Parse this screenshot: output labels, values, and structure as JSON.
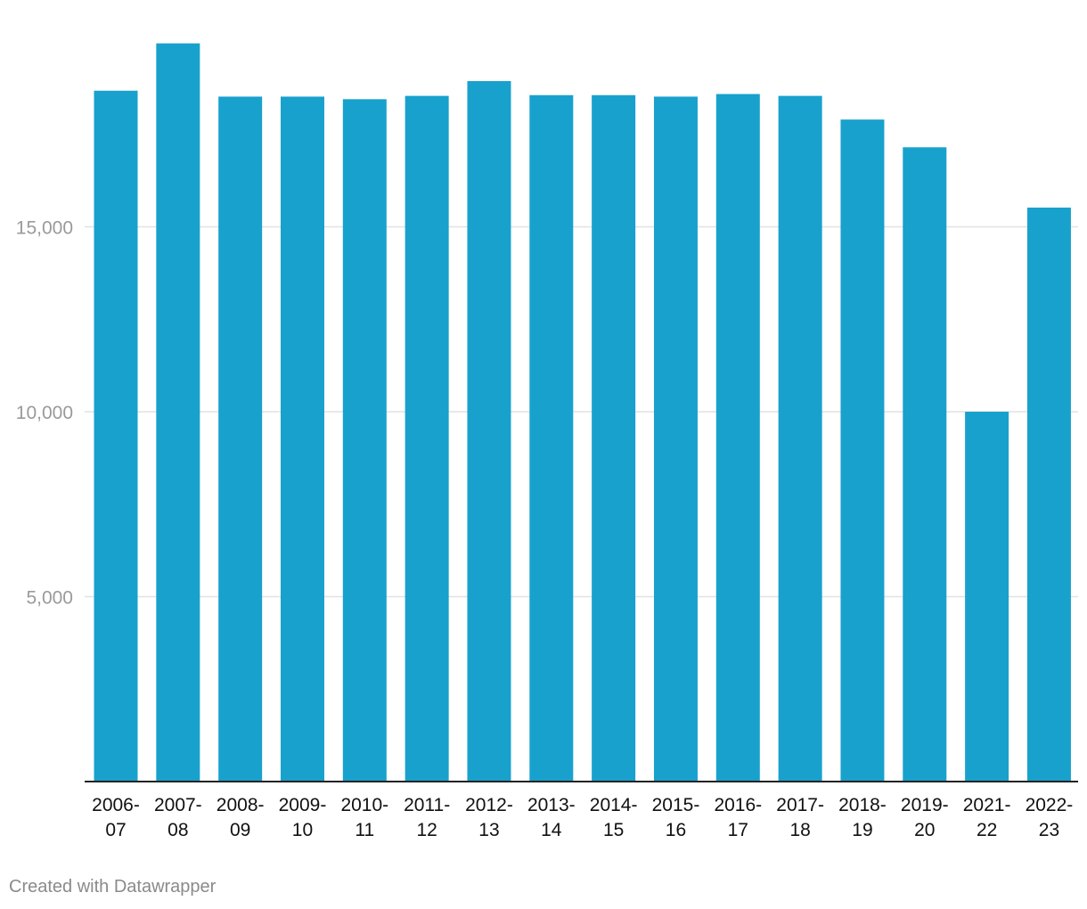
{
  "chart_data": {
    "type": "bar",
    "categories": [
      "2006-07",
      "2007-08",
      "2008-09",
      "2009-10",
      "2010-11",
      "2011-12",
      "2012-13",
      "2013-14",
      "2014-15",
      "2015-16",
      "2016-17",
      "2017-18",
      "2018-19",
      "2019-20",
      "2021-22",
      "2022-23"
    ],
    "values": [
      18680,
      19960,
      18520,
      18520,
      18450,
      18540,
      18940,
      18560,
      18560,
      18520,
      18590,
      18540,
      17900,
      17150,
      10000,
      15520
    ],
    "yticks": [
      5000,
      10000,
      15000
    ],
    "ytick_labels": [
      "5,000",
      "10,000",
      "15,000"
    ],
    "ylim": [
      0,
      21000
    ],
    "title": "",
    "xlabel": "",
    "ylabel": "",
    "grid": true,
    "bar_color": "#18a1cd",
    "gridline_color": "#e2e2e2",
    "baseline_color": "#222222"
  },
  "footer": {
    "credit": "Created with Datawrapper"
  }
}
